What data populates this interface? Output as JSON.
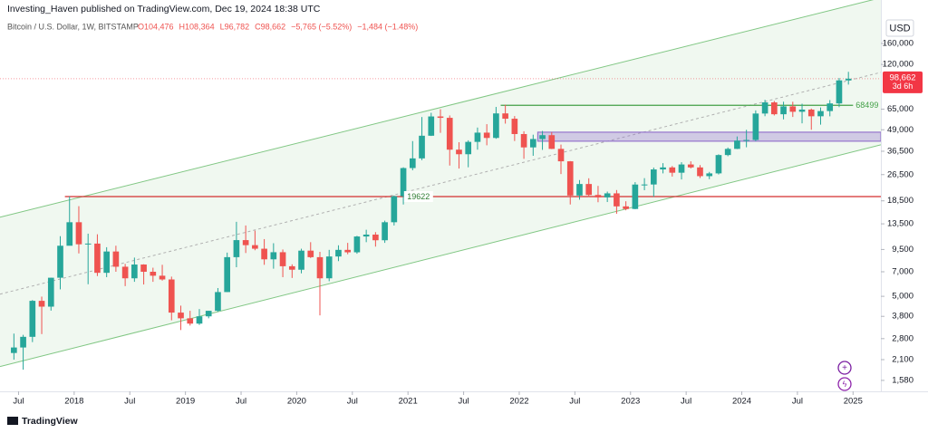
{
  "header": "Investing_Haven published on TradingView.com, Dec 19, 2024 18:38 UTC",
  "footer": "TradingView",
  "chart_data": {
    "type": "candlestick",
    "title": "Bitcoin / U.S. Dollar, 1W, BITSTAMP",
    "ohlc": [
      "O104,476",
      "H108,364",
      "L96,782",
      "C98,662",
      "−5,765 (−5.52%)",
      "−1,484 (−1.48%)"
    ],
    "currency": "USD",
    "log_scale": true,
    "grid": false,
    "colors": {
      "up": "#26a69a",
      "down": "#ef5350"
    },
    "x": [
      "2017-06",
      "2017-07",
      "2017-08",
      "2017-09",
      "2017-10",
      "2017-11",
      "2017-12",
      "2018-01",
      "2018-02",
      "2018-03",
      "2018-04",
      "2018-05",
      "2018-06",
      "2018-07",
      "2018-08",
      "2018-09",
      "2018-10",
      "2018-11",
      "2018-12",
      "2019-01",
      "2019-02",
      "2019-03",
      "2019-04",
      "2019-05",
      "2019-06",
      "2019-07",
      "2019-08",
      "2019-09",
      "2019-10",
      "2019-11",
      "2019-12",
      "2020-01",
      "2020-02",
      "2020-03",
      "2020-04",
      "2020-05",
      "2020-06",
      "2020-07",
      "2020-08",
      "2020-09",
      "2020-10",
      "2020-11",
      "2020-12",
      "2021-01",
      "2021-02",
      "2021-03",
      "2021-04",
      "2021-05",
      "2021-06",
      "2021-07",
      "2021-08",
      "2021-09",
      "2021-10",
      "2021-11",
      "2021-12",
      "2022-01",
      "2022-02",
      "2022-03",
      "2022-04",
      "2022-05",
      "2022-06",
      "2022-07",
      "2022-08",
      "2022-09",
      "2022-10",
      "2022-11",
      "2022-12",
      "2023-01",
      "2023-02",
      "2023-03",
      "2023-04",
      "2023-05",
      "2023-06",
      "2023-07",
      "2023-08",
      "2023-09",
      "2023-10",
      "2023-11",
      "2023-12",
      "2024-01",
      "2024-02",
      "2024-03",
      "2024-04",
      "2024-05",
      "2024-06",
      "2024-07",
      "2024-08",
      "2024-09",
      "2024-10",
      "2024-11",
      "2024-12"
    ],
    "open": [
      2300,
      2480,
      2870,
      4700,
      4340,
      6450,
      10000,
      13800,
      10200,
      10300,
      6900,
      9240,
      7500,
      6400,
      7730,
      7000,
      6630,
      6300,
      4000,
      3700,
      3440,
      3800,
      4100,
      5300,
      8550,
      10800,
      10080,
      9600,
      8300,
      9150,
      7550,
      7200,
      9350,
      8550,
      6400,
      8630,
      9450,
      9140,
      11350,
      11650,
      10780,
      13800,
      19700,
      28990,
      33100,
      45150,
      58800,
      57700,
      37300,
      35040,
      41500,
      47100,
      43800,
      61300,
      57000,
      46200,
      38480,
      43160,
      45500,
      37700,
      31800,
      19900,
      23300,
      20050,
      19400,
      20500,
      17150,
      16550,
      23130,
      23150,
      28450,
      29250,
      27200,
      30450,
      29250,
      25950,
      26950,
      34650,
      37700,
      42250,
      42600,
      61200,
      71300,
      60600,
      67500,
      62700,
      64600,
      58950,
      63300,
      70300,
      96400
    ],
    "high": [
      3000,
      2950,
      4750,
      4980,
      6450,
      11400,
      19650,
      17200,
      11800,
      11700,
      9800,
      10000,
      7800,
      8500,
      7760,
      7400,
      7700,
      6550,
      4400,
      4100,
      4200,
      4100,
      5600,
      9100,
      13880,
      13200,
      12300,
      10950,
      10350,
      9500,
      7750,
      9600,
      10500,
      9200,
      9450,
      10060,
      10400,
      11450,
      12450,
      12050,
      14100,
      19900,
      29300,
      41950,
      58350,
      61800,
      64900,
      59600,
      41300,
      42400,
      50500,
      52900,
      67000,
      69000,
      59100,
      48000,
      45800,
      48200,
      47450,
      40000,
      31900,
      24600,
      25200,
      22700,
      21000,
      21450,
      18400,
      23900,
      25250,
      29200,
      31000,
      29800,
      31400,
      31800,
      30200,
      27500,
      35000,
      38400,
      44700,
      48950,
      63900,
      73800,
      72700,
      71950,
      71950,
      70000,
      65500,
      66500,
      73600,
      99600,
      108364
    ],
    "low": [
      2100,
      1830,
      2670,
      2980,
      4110,
      5500,
      10700,
      9000,
      5900,
      6600,
      6500,
      7000,
      5750,
      6100,
      5880,
      6100,
      6200,
      3600,
      3150,
      3350,
      3380,
      3700,
      4050,
      5300,
      7450,
      9050,
      9400,
      7700,
      7300,
      6500,
      6430,
      6850,
      8450,
      3850,
      6150,
      8100,
      8900,
      8960,
      10500,
      9880,
      10400,
      13200,
      17600,
      28130,
      32300,
      45000,
      47000,
      30000,
      28800,
      29300,
      37300,
      39600,
      43300,
      53300,
      42000,
      32900,
      34300,
      37200,
      37600,
      26700,
      17600,
      18800,
      19500,
      18150,
      18200,
      15500,
      16250,
      16500,
      21400,
      19550,
      26950,
      25800,
      24800,
      28850,
      25300,
      24900,
      26550,
      34100,
      37600,
      38550,
      41900,
      59000,
      59600,
      56500,
      58400,
      53500,
      49000,
      52550,
      58900,
      66800,
      91000
    ],
    "close": [
      2480,
      2870,
      4700,
      4340,
      6450,
      10000,
      13800,
      10200,
      10300,
      6900,
      9240,
      7500,
      6400,
      7730,
      7000,
      6630,
      6300,
      4000,
      3700,
      3440,
      3800,
      4100,
      5300,
      8550,
      10800,
      10080,
      9600,
      8300,
      9150,
      7550,
      7200,
      9350,
      8550,
      6400,
      8630,
      9450,
      9140,
      11350,
      11650,
      10780,
      13800,
      19700,
      28990,
      33100,
      45150,
      58800,
      57700,
      37300,
      35040,
      41500,
      47100,
      43800,
      61300,
      57000,
      46200,
      38480,
      43160,
      45500,
      37700,
      31800,
      19900,
      23300,
      20050,
      19400,
      20500,
      17150,
      16550,
      23130,
      23150,
      28450,
      29250,
      27200,
      30450,
      29250,
      25950,
      26950,
      34650,
      37700,
      42250,
      42600,
      61200,
      71300,
      60600,
      67500,
      62700,
      64600,
      58950,
      63300,
      70300,
      96400,
      98662
    ],
    "xlim": [
      "2017-05",
      "2025-04"
    ],
    "ylim": [
      1360,
      290000
    ],
    "xticks": [
      {
        "value": "2017-07",
        "label": "Jul"
      },
      {
        "value": "2018-01",
        "label": "2018"
      },
      {
        "value": "2018-07",
        "label": "Jul"
      },
      {
        "value": "2019-01",
        "label": "2019"
      },
      {
        "value": "2019-07",
        "label": "Jul"
      },
      {
        "value": "2020-01",
        "label": "2020"
      },
      {
        "value": "2020-07",
        "label": "Jul"
      },
      {
        "value": "2021-01",
        "label": "2021"
      },
      {
        "value": "2021-07",
        "label": "Jul"
      },
      {
        "value": "2022-01",
        "label": "2022"
      },
      {
        "value": "2022-07",
        "label": "Jul"
      },
      {
        "value": "2023-01",
        "label": "2023"
      },
      {
        "value": "2023-07",
        "label": "Jul"
      },
      {
        "value": "2024-01",
        "label": "2024"
      },
      {
        "value": "2024-07",
        "label": "Jul"
      },
      {
        "value": "2025-01",
        "label": "2025"
      }
    ],
    "yticks": [
      {
        "value": 160000,
        "label": "160,000"
      },
      {
        "value": 120000,
        "label": "120,000"
      },
      {
        "value": 65000,
        "label": "65,000"
      },
      {
        "value": 49000,
        "label": "49,000"
      },
      {
        "value": 36500,
        "label": "36,500"
      },
      {
        "value": 26500,
        "label": "26,500"
      },
      {
        "value": 18500,
        "label": "18,500"
      },
      {
        "value": 13500,
        "label": "13,500"
      },
      {
        "value": 9500,
        "label": "9,500"
      },
      {
        "value": 7000,
        "label": "7,000"
      },
      {
        "value": 5000,
        "label": "5,000"
      },
      {
        "value": 3800,
        "label": "3,800"
      },
      {
        "value": 2800,
        "label": "2,800"
      },
      {
        "value": 2100,
        "label": "2,100"
      },
      {
        "value": 1580,
        "label": "1,580"
      }
    ],
    "last_price": {
      "value": 98662,
      "label": "98,662",
      "countdown": "3d 6h",
      "color": "#f23645"
    },
    "channel": {
      "x": [
        "2017-05",
        "2025-04"
      ],
      "upper": [
        14780,
        299000
      ],
      "middle": [
        5150,
        107600
      ],
      "lower": [
        1909,
        39850
      ],
      "color": "#81c784"
    },
    "levels": [
      {
        "value": 19622,
        "x": [
          "2017-12",
          "2025-04"
        ],
        "color": "#d32f2f",
        "label_color": "#2e7d32"
      },
      {
        "value": 68499,
        "x": [
          "2021-11",
          "2025-01"
        ],
        "color": "#43a047",
        "label_color": "#43a047"
      }
    ],
    "zones": [
      {
        "x": [
          "2022-03",
          "2025-04"
        ],
        "y": [
          41900,
          47400
        ],
        "color": "#9575cd"
      }
    ]
  }
}
